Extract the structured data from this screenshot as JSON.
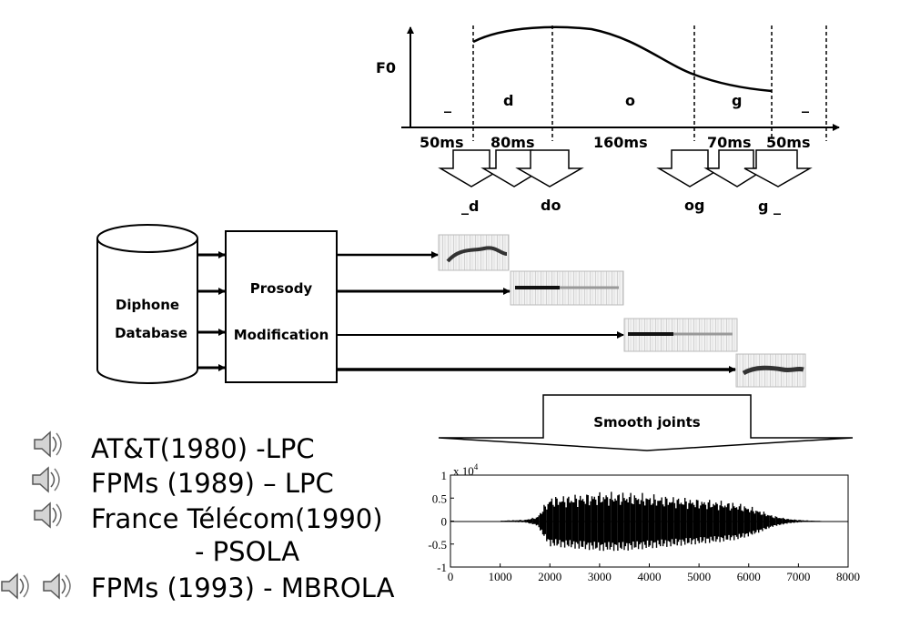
{
  "f0_chart": {
    "y_label": "F0",
    "phonemes": [
      "_",
      "d",
      "o",
      "g",
      "_"
    ],
    "durations": [
      "50ms",
      "80ms",
      "160ms",
      "70ms",
      "50ms"
    ],
    "diphones": [
      "_d",
      "do",
      "og",
      "g _"
    ]
  },
  "pipeline": {
    "database_line1": "Diphone",
    "database_line2": "Database",
    "prosody_line1": "Prosody",
    "prosody_line2": "Modification",
    "smooth_label": "Smooth joints"
  },
  "history": [
    {
      "text": "AT&T(1980) -LPC"
    },
    {
      "text": "FPMs (1989) – LPC"
    },
    {
      "text": "France Télécom(1990)"
    },
    {
      "text": "- PSOLA"
    },
    {
      "text": "FPMs (1993) - MBROLA"
    }
  ],
  "icons": [
    "speaker-icon"
  ],
  "chart_data": {
    "type": "line",
    "title": "",
    "xlabel": "",
    "ylabel": "",
    "y_multiplier_label": "x 10",
    "y_multiplier_exponent": "4",
    "xlim": [
      0,
      8000
    ],
    "ylim": [
      -1,
      1
    ],
    "x_ticks": [
      "0",
      "1000",
      "2000",
      "3000",
      "4000",
      "5000",
      "6000",
      "7000",
      "8000"
    ],
    "y_ticks": [
      "1",
      "0.5",
      "0",
      "-0.5",
      "-1"
    ],
    "envelope": {
      "x": [
        1000,
        1500,
        1750,
        1850,
        2000,
        2500,
        3000,
        3500,
        4000,
        4500,
        5000,
        5500,
        5800,
        6100,
        6500,
        6800,
        7100,
        7500
      ],
      "amplitude": [
        0.01,
        0.03,
        0.1,
        0.3,
        0.55,
        0.6,
        0.65,
        0.65,
        0.6,
        0.55,
        0.5,
        0.45,
        0.4,
        0.3,
        0.12,
        0.05,
        0.02,
        0.0
      ]
    }
  }
}
